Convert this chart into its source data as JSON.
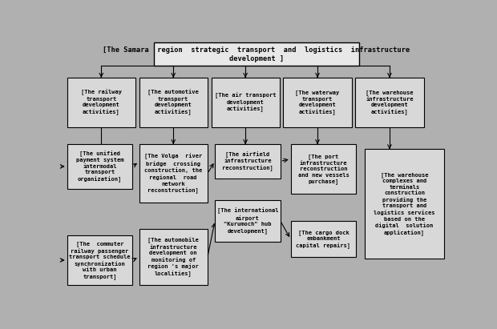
{
  "bg_color": "#b0b0b0",
  "box_face": "#d8d8d8",
  "box_edge": "#000000",
  "title": "[The Samara  region  strategic  transport  and  logistics  infrastructure\ndevelopment ]",
  "level2": [
    "[The railway\ntransport\ndevelopment\nactivities]",
    "[The automotive\ntransport\ndevelopment\nactivities]",
    "[The air transport\ndevelopment\nactivities]",
    "[The waterway\ntransport\ndevelopment\nactivities]",
    "[The warehouse\ninfrastructure\ndevelopment\nactivities]"
  ],
  "level3_col1": [
    "[The unified\npayment system\nintermodal\ntransport\norganization]",
    "[The  commuter\nrailway passenger\ntransport schedule\nsynchronization\nwith urban\ntransport]"
  ],
  "level3_col2": [
    "[The Volga  river\nbridge  crossing\nconstruction, the\nregional  road\nnetwork\nreconstruction]",
    "[The automobile\ninfrastructure\ndevelopment on\nmonitoring of\nregion 's major\nlocalities]"
  ],
  "level3_col3": [
    "[The airfield\ninfrastructure\nreconstruction]",
    "[The international\nairport\n\"Kurumoch\" hub\ndevelopment]"
  ],
  "level3_col4": [
    "[The port\ninfrastructure\nreconstruction\nand new vessels\npurchase]",
    "[The cargo dock\nembankment\ncapital repairs]"
  ],
  "level3_col5": [
    "[The warehouse\ncomplexes and\nterminals\nconstruction\nproviding the\ntransport and\nlogistics services\nbased on the\ndigital  solution\napplication]"
  ],
  "font_size": 5.0,
  "title_font_size": 6.2
}
